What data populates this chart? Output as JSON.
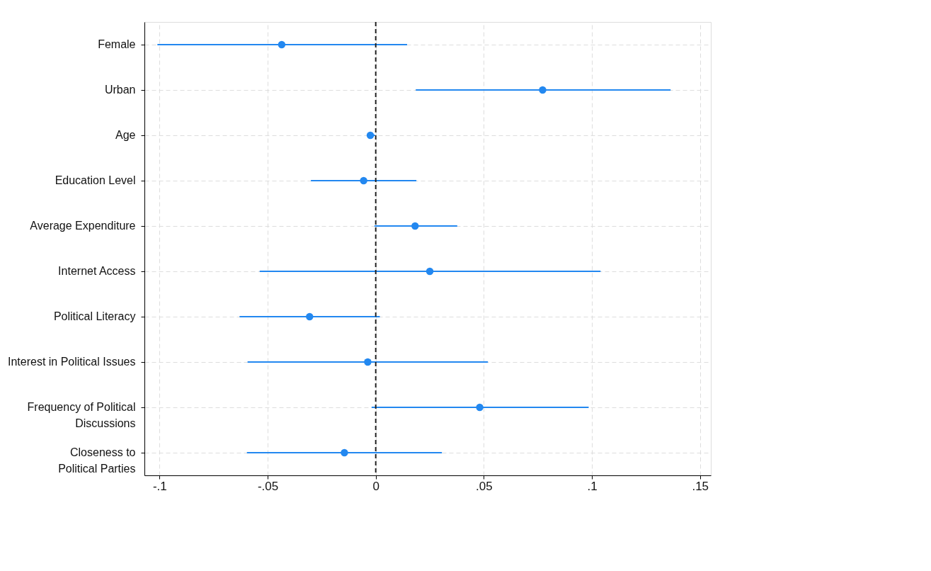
{
  "chart_data": {
    "type": "scatter",
    "orientation": "horizontal",
    "marker": "circle",
    "grid": true,
    "categories": [
      "Female",
      "Urban",
      "Age",
      "Education Level",
      "Average Expenditure",
      "Internet Access",
      "Political Literacy",
      "Interest in Political Issues",
      "Frequency of Political\nDiscussions",
      "Closeness to\nPolitical Parties"
    ],
    "series": [
      {
        "color": "#2388f0",
        "values": [
          -0.0435,
          0.0772,
          -0.0025,
          -0.0056,
          0.0182,
          0.025,
          -0.0306,
          -0.0037,
          0.0481,
          -0.0145
        ],
        "errors": [
          [
            -0.101,
            0.0145
          ],
          [
            0.0185,
            0.1364
          ],
          [
            -0.004,
            -0.0003
          ],
          [
            -0.03,
            0.0188
          ],
          [
            -0.0006,
            0.0377
          ],
          [
            -0.0537,
            0.104
          ],
          [
            -0.063,
            0.0019
          ],
          [
            -0.0593,
            0.0519
          ],
          [
            -0.0019,
            0.0985
          ],
          [
            -0.0596,
            0.0306
          ]
        ]
      }
    ],
    "xlim": [
      -0.107,
      0.155
    ],
    "xticks": [
      {
        "value": -0.1,
        "label": "-.1"
      },
      {
        "value": -0.05,
        "label": "-.05"
      },
      0,
      {
        "value": 0.05,
        "label": ".05"
      },
      {
        "value": 0.1,
        "label": ".1"
      },
      {
        "value": 0.15,
        "label": ".15"
      }
    ],
    "ref_lines": [
      {
        "axis": "x",
        "value": 0,
        "color": "#222222",
        "line_style": "dashed"
      }
    ]
  }
}
